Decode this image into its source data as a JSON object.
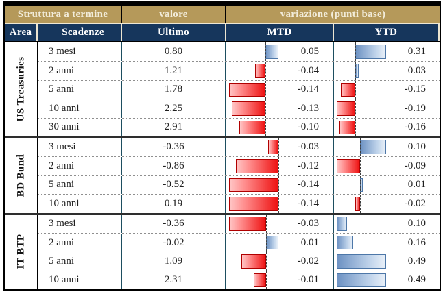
{
  "header": {
    "group": {
      "struttura": "Struttura a termine",
      "valore": "valore",
      "variazione": "variazione (punti base)"
    },
    "columns": {
      "area": "Area",
      "scadenze": "Scadenze",
      "ultimo": "Ultimo",
      "mtd": "MTD",
      "ytd": "YTD"
    }
  },
  "colors": {
    "gold_header_bg": "#b5995a",
    "navy_header_bg": "#16365c",
    "header_text": "#f2ecda",
    "divider_teal": "#1d4e60",
    "bar_negative_fill": "#ee1212",
    "bar_negative_border": "#b00000",
    "bar_positive_fill": "#6d92c3",
    "bar_positive_border": "#4d77a8"
  },
  "chart_data": {
    "type": "table",
    "title": "Struttura a termine",
    "value_column": "Ultimo",
    "variation_unit": "punti base",
    "variation_columns": [
      "MTD",
      "YTD"
    ],
    "bar_encoding": {
      "negative": "red bar extending left of dashed baseline",
      "positive": "blue bar extending right of dashed baseline",
      "scaling": "per section per column, max absolute value fills bar area"
    },
    "sections": [
      {
        "area": "US Treasuries",
        "rows": [
          {
            "scadenza": "3 mesi",
            "ultimo": 0.8,
            "mtd": 0.05,
            "ytd": 0.31
          },
          {
            "scadenza": "2 anni",
            "ultimo": 1.21,
            "mtd": -0.04,
            "ytd": 0.03
          },
          {
            "scadenza": "5 anni",
            "ultimo": 1.78,
            "mtd": -0.14,
            "ytd": -0.15
          },
          {
            "scadenza": "10 anni",
            "ultimo": 2.25,
            "mtd": -0.13,
            "ytd": -0.19
          },
          {
            "scadenza": "30 anni",
            "ultimo": 2.91,
            "mtd": -0.1,
            "ytd": -0.16
          }
        ]
      },
      {
        "area": "BD Bund",
        "rows": [
          {
            "scadenza": "3 mesi",
            "ultimo": -0.36,
            "mtd": -0.03,
            "ytd": 0.1
          },
          {
            "scadenza": "2 anni",
            "ultimo": -0.86,
            "mtd": -0.12,
            "ytd": -0.09
          },
          {
            "scadenza": "5 anni",
            "ultimo": -0.52,
            "mtd": -0.14,
            "ytd": 0.01
          },
          {
            "scadenza": "10 anni",
            "ultimo": 0.19,
            "mtd": -0.14,
            "ytd": -0.02
          }
        ]
      },
      {
        "area": "IT BTP",
        "rows": [
          {
            "scadenza": "3 mesi",
            "ultimo": -0.36,
            "mtd": -0.03,
            "ytd": 0.1
          },
          {
            "scadenza": "2 anni",
            "ultimo": -0.02,
            "mtd": 0.01,
            "ytd": 0.16
          },
          {
            "scadenza": "5 anni",
            "ultimo": 1.09,
            "mtd": -0.02,
            "ytd": 0.49
          },
          {
            "scadenza": "10 anni",
            "ultimo": 2.31,
            "mtd": -0.01,
            "ytd": 0.49
          }
        ]
      }
    ]
  }
}
